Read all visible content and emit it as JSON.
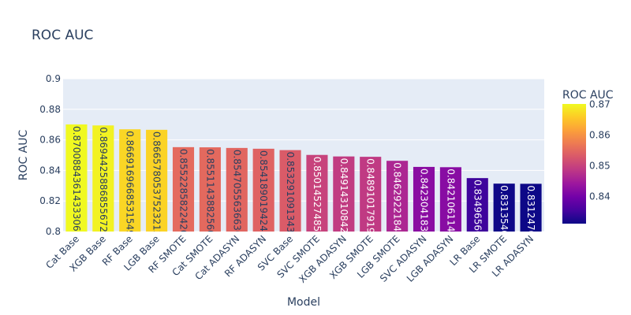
{
  "chart_data": {
    "type": "bar",
    "title": "ROC AUC",
    "xlabel": "Model",
    "ylabel": "ROC AUC",
    "ylim": [
      0.8,
      0.9
    ],
    "yticks": [
      "0.8",
      "0.82",
      "0.84",
      "0.86",
      "0.88",
      "0.9"
    ],
    "categories": [
      "Cat Base",
      "XGB Base",
      "RF Base",
      "LGB Base",
      "RF SMOTE",
      "Cat SMOTE",
      "Cat ADASYN",
      "RF ADASYN",
      "SVC Base",
      "SVC SMOTE",
      "XGB ADASYN",
      "XGB SMOTE",
      "LGB SMOTE",
      "SVC ADASYN",
      "LGB ADASYN",
      "LR Base",
      "LR SMOTE",
      "LR ADASYN"
    ],
    "values": [
      0.8700884361433,
      0.8694425886855672,
      0.8669169668531549,
      0.8665780537523213,
      0.8552285822426,
      0.855114388256,
      0.854705563663,
      0.854189019424,
      0.853291091343,
      0.85014527485,
      0.84914310842,
      0.84891017919,
      0.8462922184,
      0.842304183,
      0.842106114,
      0.8349656,
      0.831354,
      0.831247
    ],
    "data_labels": [
      "0.8700884361433306",
      "0.8694425886855672",
      "0.8669169668531549",
      "0.8665780537523213",
      "0.8552285822426",
      "0.8551143882560",
      "0.8547055636630",
      "0.8541890194240",
      "0.8532910913430",
      "0.8501452748500",
      "0.8491431084200",
      "0.8489101791900",
      "0.8462922184000",
      "0.8423041830000",
      "0.8421061140000",
      "0.834965600",
      "0.831354000",
      "0.831247000"
    ],
    "colorbar": {
      "title": "ROC AUC",
      "range": [
        0.831247,
        0.8700884361433
      ],
      "ticks": [
        "0.84",
        "0.85",
        "0.86",
        "0.87"
      ],
      "colorscale": [
        "#0d0887",
        "#46039f",
        "#7201a8",
        "#9c179e",
        "#bd3786",
        "#d8576b",
        "#ed7953",
        "#fb9f3a",
        "#fdca26",
        "#f0f921"
      ]
    },
    "grid": true,
    "legend": "colorbar-right"
  }
}
